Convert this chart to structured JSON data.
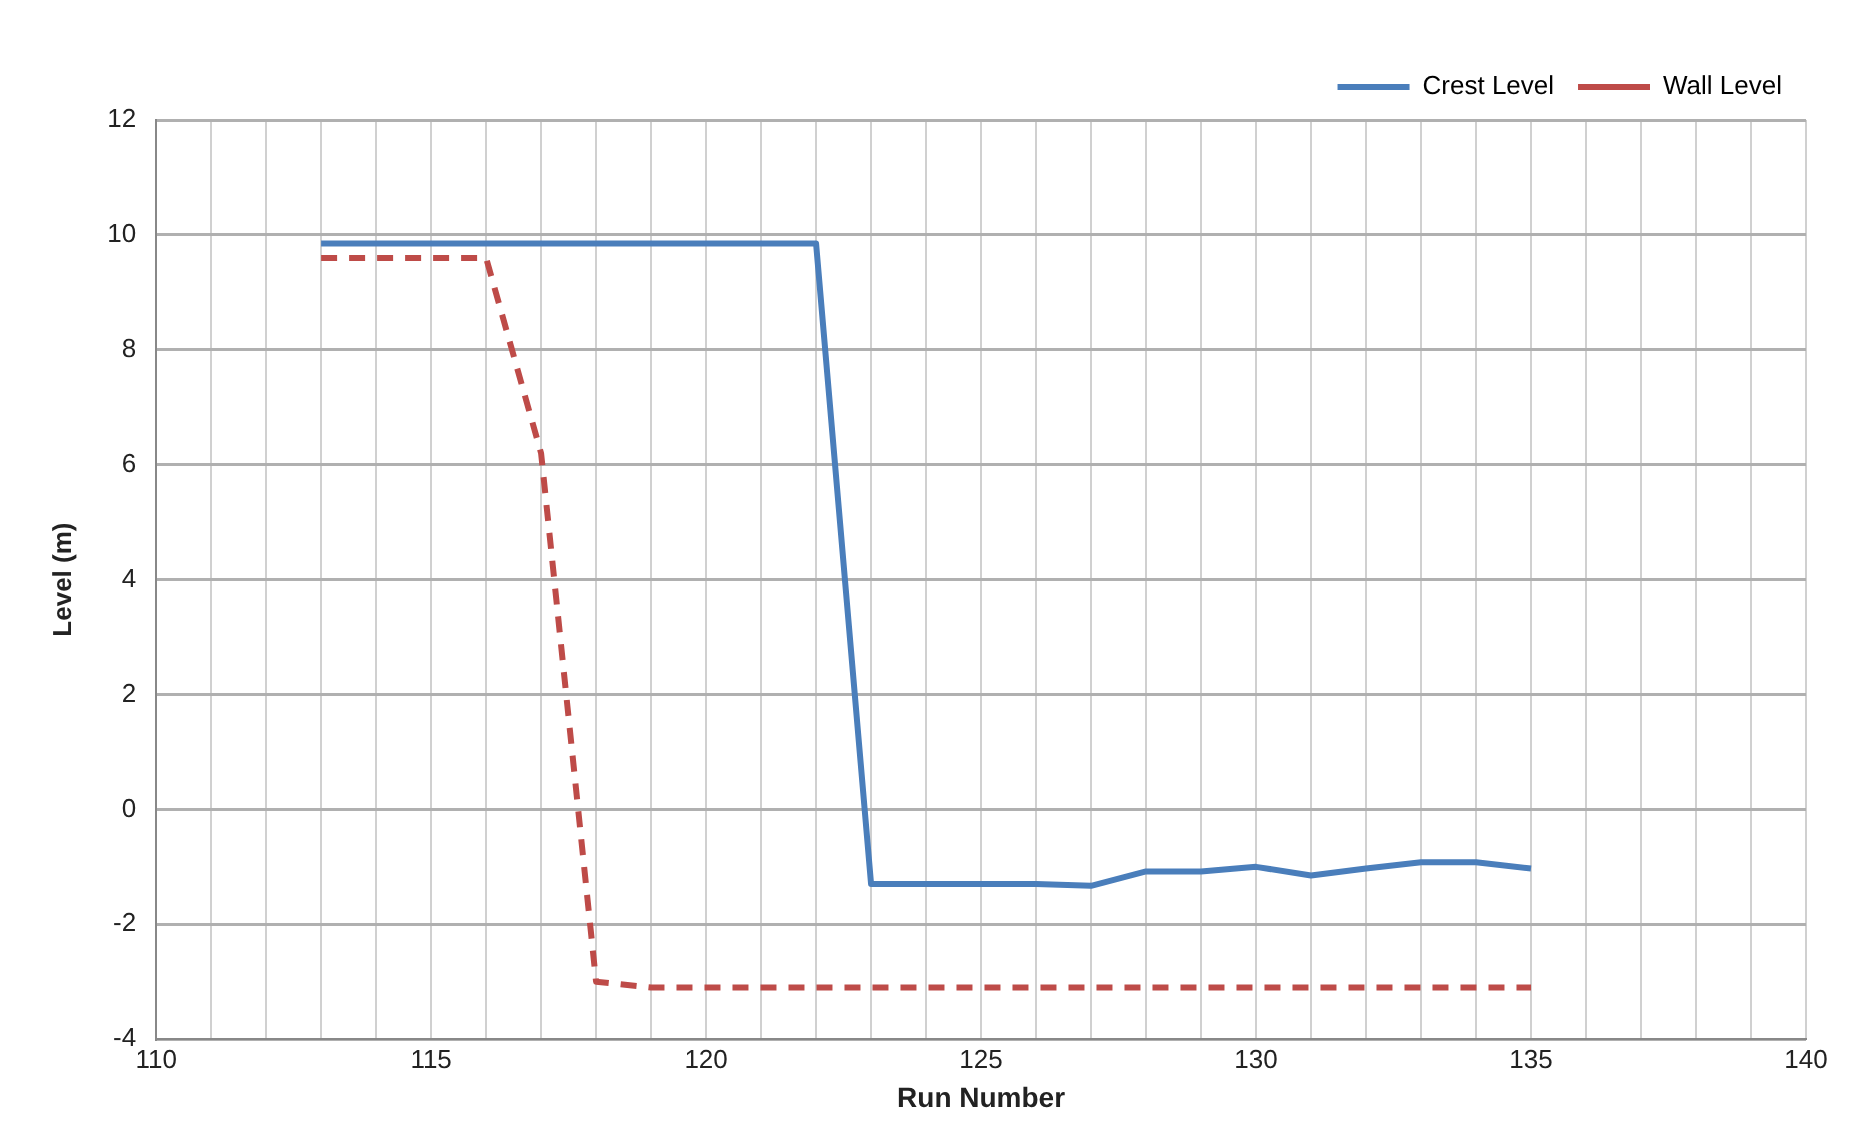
{
  "chart_data": {
    "type": "line",
    "xlabel": "Run Number",
    "ylabel": "Level (m)",
    "xlim": [
      110,
      140
    ],
    "xticks": [
      110,
      115,
      120,
      125,
      130,
      135,
      140
    ],
    "ylim": [
      -4,
      12
    ],
    "yticks": [
      -4,
      -2,
      0,
      2,
      4,
      6,
      8,
      10,
      12
    ],
    "grid": true,
    "legend": "top right",
    "marker": "none",
    "series": [
      {
        "name": "Crest Level",
        "color": "#4a7ebb",
        "line_style": "solid",
        "x": [
          113,
          114,
          115,
          116,
          117,
          118,
          119,
          120,
          121,
          122,
          123,
          124,
          125,
          126,
          127,
          128,
          129,
          130,
          131,
          132,
          133,
          134,
          135
        ],
        "values": [
          9.85,
          9.85,
          9.85,
          9.85,
          9.85,
          9.85,
          9.85,
          9.85,
          9.85,
          9.85,
          -1.3,
          -1.3,
          -1.3,
          -1.3,
          -1.33,
          -1.08,
          -1.08,
          -1.0,
          -1.15,
          -1.03,
          -0.92,
          -0.92,
          -1.03
        ]
      },
      {
        "name": "Wall Level",
        "color": "#be4b48",
        "line_style": "dashed",
        "x": [
          113,
          114,
          115,
          116,
          117,
          118,
          119,
          120,
          121,
          122,
          123,
          124,
          125,
          126,
          127,
          128,
          129,
          130,
          131,
          132,
          133,
          134,
          135
        ],
        "values": [
          9.6,
          9.6,
          9.6,
          9.6,
          6.2,
          -3.0,
          -3.1,
          -3.1,
          -3.1,
          -3.1,
          -3.1,
          -3.1,
          -3.1,
          -3.1,
          -3.1,
          -3.1,
          -3.1,
          -3.1,
          -3.1,
          -3.1,
          -3.1,
          -3.1,
          -3.1
        ]
      }
    ]
  }
}
